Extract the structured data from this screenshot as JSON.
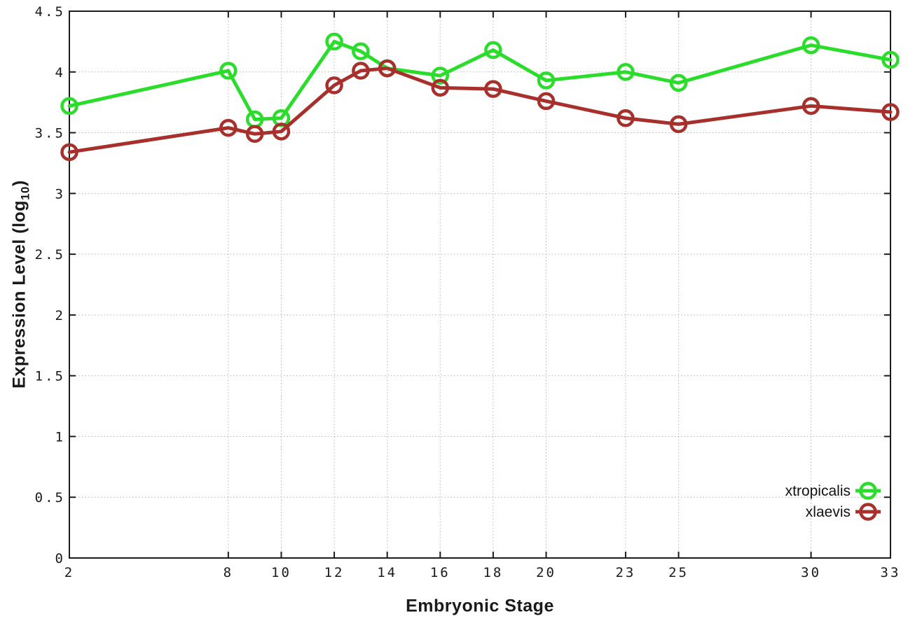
{
  "chart_data": {
    "type": "line",
    "title": "",
    "xlabel": "Embryonic Stage",
    "ylabel_prefix": "Expression Level (log",
    "ylabel_sub": "10",
    "ylabel_suffix": ")",
    "x": [
      2,
      8,
      9,
      10,
      12,
      13,
      14,
      16,
      18,
      20,
      23,
      25,
      30,
      33
    ],
    "xlim": [
      2,
      33
    ],
    "ylim": [
      0,
      4.5
    ],
    "xticks": [
      2,
      8,
      10,
      12,
      14,
      16,
      18,
      20,
      23,
      25,
      30,
      33
    ],
    "yticks": [
      {
        "v": 0,
        "label": "0"
      },
      {
        "v": 0.5,
        "label": "0.5"
      },
      {
        "v": 1,
        "label": "1"
      },
      {
        "v": 1.5,
        "label": "1.5"
      },
      {
        "v": 2,
        "label": "2"
      },
      {
        "v": 2.5,
        "label": "2.5"
      },
      {
        "v": 3,
        "label": "3"
      },
      {
        "v": 3.5,
        "label": "3.5"
      },
      {
        "v": 4,
        "label": "4"
      },
      {
        "v": 4.5,
        "label": "4.5"
      }
    ],
    "grid": true,
    "legend_position": "bottom-right",
    "series": [
      {
        "name": "xtropicalis",
        "color": "#2bdd2b",
        "values": [
          3.72,
          4.01,
          3.61,
          3.62,
          4.25,
          4.17,
          4.03,
          3.97,
          4.18,
          3.93,
          4.0,
          3.91,
          4.22,
          4.1
        ]
      },
      {
        "name": "xlaevis",
        "color": "#a8302c",
        "values": [
          3.34,
          3.54,
          3.49,
          3.51,
          3.89,
          4.01,
          4.03,
          3.87,
          3.86,
          3.76,
          3.62,
          3.57,
          3.72,
          3.67
        ]
      }
    ],
    "colors": {
      "axis": "#1c1c1c",
      "grid": "#b4b4b4",
      "tick_text": "#1a1a1a",
      "legend_text": "#111111",
      "background": "#ffffff"
    }
  }
}
